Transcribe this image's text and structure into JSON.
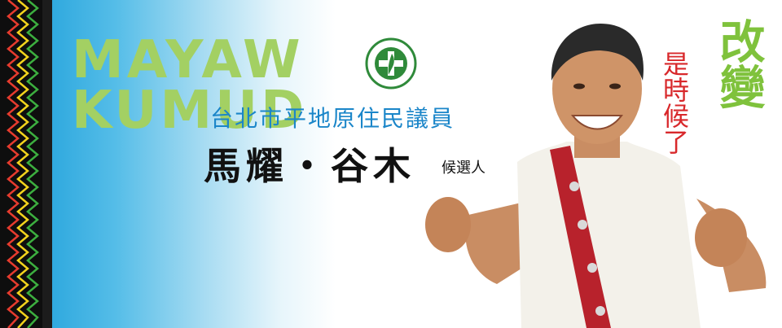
{
  "banner": {
    "latin_name_line1": "MAYAW",
    "latin_name_line2": "KUMUD",
    "office_title": "台北市平地原住民議員",
    "candidate_name": "馬耀・谷木",
    "candidate_suffix": "候選人",
    "slogan_small": "是時候了",
    "slogan_big": "改變",
    "party_logo_text": "DEMOCRATIC PROGRESSIVE PARTY",
    "colors": {
      "accent_green": "#a3d063",
      "title_blue": "#1b86c9",
      "slogan_red": "#d8282b",
      "slogan_green": "#7fc23c",
      "gradient_blue": "#2aa6dd"
    }
  }
}
